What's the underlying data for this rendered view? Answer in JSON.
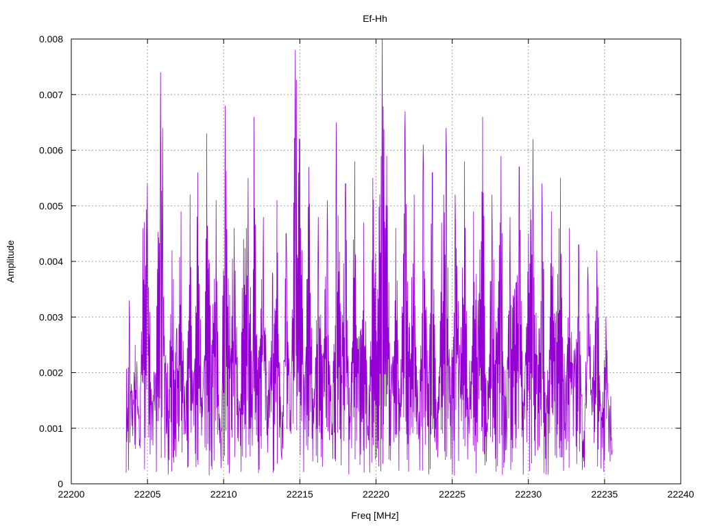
{
  "chart_data": {
    "type": "line",
    "title": "Ef-Hh",
    "xlabel": "Freq [MHz]",
    "ylabel": "Amplitude",
    "xlim": [
      22200,
      22240
    ],
    "ylim": [
      0,
      0.008
    ],
    "x_ticks": [
      22200,
      22205,
      22210,
      22215,
      22220,
      22225,
      22230,
      22235,
      22240
    ],
    "y_ticks": [
      0,
      0.001,
      0.002,
      0.003,
      0.004,
      0.005,
      0.006,
      0.007,
      0.008
    ],
    "x_tick_labels": [
      "22200",
      "22205",
      "22210",
      "22215",
      "22220",
      "22225",
      "22230",
      "22235",
      "22240"
    ],
    "y_tick_labels": [
      "0",
      "0.001",
      "0.002",
      "0.003",
      "0.004",
      "0.005",
      "0.006",
      "0.007",
      "0.008"
    ],
    "grid": true,
    "series": [
      {
        "color": "#9400d3",
        "x_start": 22203.6,
        "x_end": 22235.5,
        "x": [
          22203.6,
          22203.8,
          22204.0,
          22204.2,
          22204.5,
          22204.7,
          22205.0,
          22205.3,
          22205.6,
          22205.85,
          22206.0,
          22206.3,
          22206.6,
          22206.9,
          22207.2,
          22207.5,
          22207.8,
          22208.0,
          22208.3,
          22208.6,
          22208.9,
          22209.2,
          22209.5,
          22209.8,
          22210.1,
          22210.4,
          22210.7,
          22211.0,
          22211.3,
          22211.6,
          22211.9,
          22212.0,
          22212.3,
          22212.6,
          22212.9,
          22213.2,
          22213.5,
          22213.8,
          22214.1,
          22214.4,
          22214.7,
          22215.0,
          22215.3,
          22215.6,
          22215.9,
          22216.2,
          22216.5,
          22216.8,
          22217.1,
          22217.4,
          22217.7,
          22218.0,
          22218.3,
          22218.6,
          22218.9,
          22219.2,
          22219.5,
          22219.8,
          22220.1,
          22220.4,
          22220.7,
          22221.0,
          22221.3,
          22221.6,
          22221.9,
          22222.2,
          22222.5,
          22222.8,
          22223.1,
          22223.4,
          22223.7,
          22224.0,
          22224.3,
          22224.6,
          22224.9,
          22225.2,
          22225.5,
          22225.8,
          22226.1,
          22226.4,
          22226.7,
          22227.0,
          22227.3,
          22227.6,
          22227.9,
          22228.2,
          22228.5,
          22228.8,
          22229.1,
          22229.4,
          22229.7,
          22230.0,
          22230.3,
          22230.6,
          22230.9,
          22231.2,
          22231.5,
          22231.8,
          22232.1,
          22232.4,
          22232.7,
          22233.0,
          22233.3,
          22233.6,
          22233.9,
          22234.2,
          22234.5,
          22234.8,
          22235.1,
          22235.5
        ],
        "y": [
          0.0002,
          0.0033,
          0.0012,
          0.0025,
          0.0008,
          0.0046,
          0.0054,
          0.0015,
          0.0032,
          0.0074,
          0.0064,
          0.0011,
          0.0042,
          0.0028,
          0.0049,
          0.0009,
          0.0052,
          0.0018,
          0.0056,
          0.0012,
          0.0063,
          0.0025,
          0.0051,
          0.0008,
          0.0068,
          0.0034,
          0.0046,
          0.0013,
          0.0044,
          0.0055,
          0.0019,
          0.0066,
          0.0024,
          0.0048,
          0.0011,
          0.0038,
          0.0051,
          0.0005,
          0.0045,
          0.0009,
          0.0078,
          0.0062,
          0.0019,
          0.0057,
          0.0012,
          0.0048,
          0.0023,
          0.0051,
          0.0009,
          0.0065,
          0.0031,
          0.0054,
          0.0011,
          0.0058,
          0.0026,
          0.0047,
          0.0008,
          0.0055,
          0.0035,
          0.008,
          0.0059,
          0.0021,
          0.0046,
          0.0014,
          0.0067,
          0.0029,
          0.0052,
          0.0008,
          0.0061,
          0.0024,
          0.0056,
          0.0012,
          0.0047,
          0.0064,
          0.0016,
          0.0052,
          0.0025,
          0.0058,
          0.0009,
          0.0049,
          0.0033,
          0.0066,
          0.0011,
          0.0052,
          0.0028,
          0.0059,
          0.0006,
          0.0048,
          0.0035,
          0.0057,
          0.0014,
          0.0045,
          0.0062,
          0.0021,
          0.0054,
          0.0016,
          0.0049,
          0.0029,
          0.0055,
          0.0011,
          0.0046,
          0.0024,
          0.0043,
          0.0008,
          0.0039,
          0.0019,
          0.0042,
          0.0012,
          0.003,
          0.0006
        ]
      }
    ]
  }
}
